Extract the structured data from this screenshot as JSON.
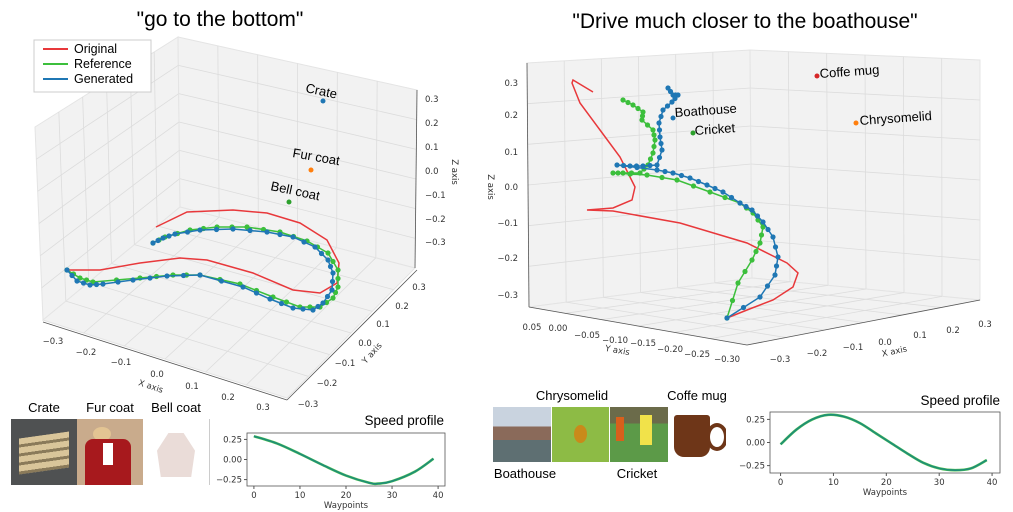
{
  "titles": [
    "\"go to the bottom\"",
    "\"Drive much closer to the boathouse\""
  ],
  "colors": {
    "original": "#e8383b",
    "reference": "#3cbf3c",
    "generated": "#1f77b4",
    "speed": "#1e8c7a",
    "pane": "#f2f2f2",
    "grid": "#dcdcdc"
  },
  "legend": [
    "Original",
    "Reference",
    "Generated"
  ],
  "chart_data": [
    {
      "type": "line3d",
      "title": "\"go to the bottom\"",
      "xlabel": "X axis",
      "ylabel": "Y axis",
      "zlabel": "Z axis",
      "x_ticks": [
        "−0.3",
        "−0.2",
        "−0.1",
        "0.0",
        "0.1",
        "0.2",
        "0.3"
      ],
      "y_ticks": [
        "0.3",
        "0.2",
        "0.1",
        "0.0",
        "−0.1",
        "−0.2",
        "−0.3"
      ],
      "z_ticks": [
        "0.3",
        "0.2",
        "0.1",
        "0.0",
        "−0.1",
        "−0.2",
        "−0.3"
      ],
      "legend": [
        "Original",
        "Reference",
        "Generated"
      ],
      "legend_position": "top-left",
      "series": [
        {
          "name": "Original"
        },
        {
          "name": "Reference"
        },
        {
          "name": "Generated"
        }
      ],
      "objects": [
        {
          "label": "Crate",
          "color": "#1f77b4"
        },
        {
          "label": "Fur coat",
          "color": "#ff7f0e"
        },
        {
          "label": "Bell coat",
          "color": "#2ca02c"
        }
      ],
      "grid": true
    },
    {
      "type": "line3d",
      "title": "\"Drive much closer to the boathouse\"",
      "xlabel": "X axis",
      "ylabel": "Y axis",
      "zlabel": "Z axis",
      "x_ticks": [
        "−0.3",
        "−0.2",
        "−0.1",
        "0.0",
        "0.1",
        "0.2",
        "0.3"
      ],
      "y_ticks": [
        "0.05",
        "0.00",
        "−0.05",
        "−0.10",
        "−0.15",
        "−0.20",
        "−0.25",
        "−0.30"
      ],
      "z_ticks": [
        "0.3",
        "0.2",
        "0.1",
        "0.0",
        "−0.1",
        "−0.2",
        "−0.3"
      ],
      "series": [
        {
          "name": "Original"
        },
        {
          "name": "Reference"
        },
        {
          "name": "Generated"
        }
      ],
      "objects": [
        {
          "label": "Coffe mug",
          "color": "#d62728"
        },
        {
          "label": "Chrysomelid",
          "color": "#ff7f0e"
        },
        {
          "label": "Boathouse",
          "color": "#1f77b4"
        },
        {
          "label": "Cricket",
          "color": "#2ca02c"
        }
      ],
      "grid": true
    },
    {
      "type": "line",
      "title": "Speed profile",
      "xlabel": "Waypoints",
      "x_ticks": [
        "0",
        "10",
        "20",
        "30",
        "40"
      ],
      "y_ticks": [
        "0.25",
        "0.00",
        "−0.25"
      ],
      "xlim": [
        -1.5,
        41.5
      ],
      "ylim": [
        -0.33,
        0.33
      ],
      "x": [
        0,
        5,
        10,
        15,
        20,
        25,
        27,
        30,
        35,
        39
      ],
      "values": [
        0.29,
        0.2,
        0.07,
        -0.07,
        -0.2,
        -0.29,
        -0.3,
        -0.27,
        -0.15,
        0.01
      ]
    },
    {
      "type": "line",
      "title": "Speed profile",
      "xlabel": "Waypoints",
      "x_ticks": [
        "0",
        "10",
        "20",
        "30",
        "40"
      ],
      "y_ticks": [
        "0.25",
        "0.00",
        "−0.25"
      ],
      "xlim": [
        -2,
        41.5
      ],
      "ylim": [
        -0.33,
        0.33
      ],
      "x": [
        0,
        3,
        6,
        9,
        12,
        15,
        18,
        21,
        24,
        27,
        30,
        33,
        36,
        39
      ],
      "values": [
        -0.02,
        0.14,
        0.25,
        0.3,
        0.28,
        0.21,
        0.1,
        -0.01,
        -0.12,
        -0.22,
        -0.28,
        -0.3,
        -0.28,
        -0.19
      ]
    }
  ],
  "images_left": [
    "Crate",
    "Fur coat",
    "Bell coat"
  ],
  "images_right": [
    "Boathouse",
    "Chrysomelid",
    "Cricket",
    "Coffe mug"
  ]
}
